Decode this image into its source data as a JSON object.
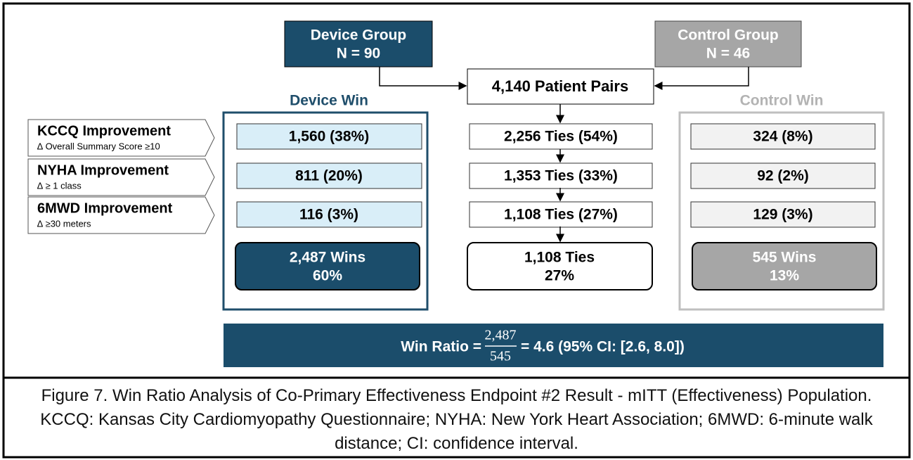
{
  "groups": {
    "device": {
      "title": "Device Group",
      "n": "N = 90"
    },
    "control": {
      "title": "Control Group",
      "n": "N = 46"
    }
  },
  "pairs": "4,140 Patient Pairs",
  "headings": {
    "device_win": "Device Win",
    "control_win": "Control Win"
  },
  "outcomes": [
    {
      "label": "KCCQ Improvement",
      "sublabel": "∆ Overall Summary Score ≥10",
      "device": "1,560 (38%)",
      "ties": "2,256 Ties (54%)",
      "control": "324 (8%)"
    },
    {
      "label": "NYHA Improvement",
      "sublabel": "∆ ≥ 1 class",
      "device": "811 (20%)",
      "ties": "1,353 Ties (33%)",
      "control": "92 (2%)"
    },
    {
      "label": "6MWD Improvement",
      "sublabel": "∆ ≥30 meters",
      "device": "116 (3%)",
      "ties": "1,108 Ties (27%)",
      "control": "129 (3%)"
    }
  ],
  "totals": {
    "device": {
      "count": "2,487 Wins",
      "pct": "60%"
    },
    "ties": {
      "count": "1,108 Ties",
      "pct": "27%"
    },
    "control": {
      "count": "545 Wins",
      "pct": "13%"
    }
  },
  "win_ratio": {
    "label": "Win Ratio =",
    "numerator": "2,487",
    "denominator": "545",
    "result": "= 4.6 (95% CI:  [2.6, 8.0])"
  },
  "caption": "Figure 7. Win Ratio Analysis of Co-Primary Effectiveness Endpoint #2 Result - mITT (Effectiveness) Population. KCCQ: Kansas City Cardiomyopathy Questionnaire; NYHA: New York Heart Association; 6MWD: 6-minute walk distance; CI: confidence interval."
}
